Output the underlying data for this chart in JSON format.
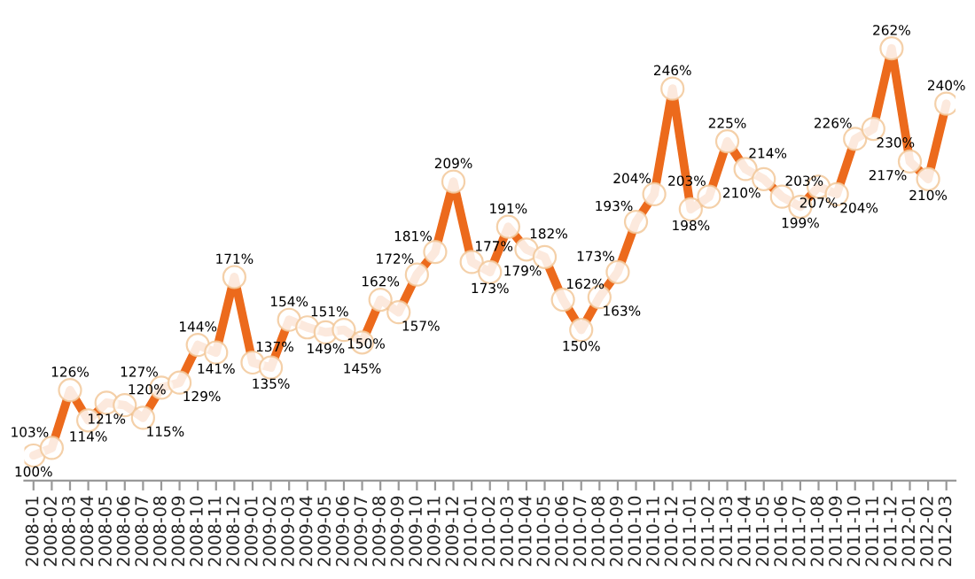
{
  "chart_data": {
    "type": "line",
    "categories": [
      "2008-01",
      "2008-02",
      "2008-03",
      "2008-04",
      "2008-05",
      "2008-06",
      "2008-07",
      "2008-08",
      "2008-09",
      "2008-10",
      "2008-11",
      "2008-12",
      "2009-01",
      "2009-02",
      "2009-03",
      "2009-04",
      "2009-05",
      "2009-06",
      "2009-07",
      "2009-08",
      "2009-09",
      "2009-10",
      "2009-11",
      "2009-12",
      "2010-01",
      "2010-02",
      "2010-03",
      "2010-04",
      "2010-05",
      "2010-06",
      "2010-07",
      "2010-08",
      "2010-09",
      "2010-10",
      "2010-11",
      "2010-12",
      "2011-01",
      "2011-02",
      "2011-03",
      "2011-04",
      "2011-05",
      "2011-06",
      "2011-07",
      "2011-08",
      "2011-09",
      "2011-10",
      "2011-11",
      "2011-12",
      "2012-01",
      "2012-02",
      "2012-03"
    ],
    "series": [
      {
        "color": "#ec6a1c",
        "values": [
          100,
          103,
          126,
          114,
          121,
          120,
          115,
          127,
          129,
          144,
          141,
          171,
          137,
          135,
          154,
          151,
          149,
          150,
          145,
          162,
          157,
          172,
          181,
          209,
          177,
          173,
          191,
          182,
          179,
          162,
          150,
          163,
          173,
          193,
          204,
          246,
          198,
          203,
          225,
          214,
          210,
          203,
          199,
          207,
          204,
          226,
          230,
          262,
          217,
          210,
          240
        ],
        "value_labels": [
          "100%",
          "103%",
          "126%",
          "114%",
          "121%",
          "120%",
          "115%",
          "127%",
          "129%",
          "144%",
          "141%",
          "171%",
          "137%",
          "135%",
          "154%",
          "151%",
          "149%",
          "150%",
          "145%",
          "162%",
          "157%",
          "172%",
          "181%",
          "209%",
          "177%",
          "173%",
          "191%",
          "182%",
          "179%",
          "162%",
          "150%",
          "163%",
          "173%",
          "193%",
          "204%",
          "246%",
          "198%",
          "203%",
          "225%",
          "214%",
          "210%",
          "203%",
          "199%",
          "207%",
          "204%",
          "226%",
          "230%",
          "262%",
          "217%",
          "210%",
          "240%"
        ]
      }
    ],
    "marker": "circle",
    "line_style": "solid",
    "grid": false,
    "legend": false
  }
}
